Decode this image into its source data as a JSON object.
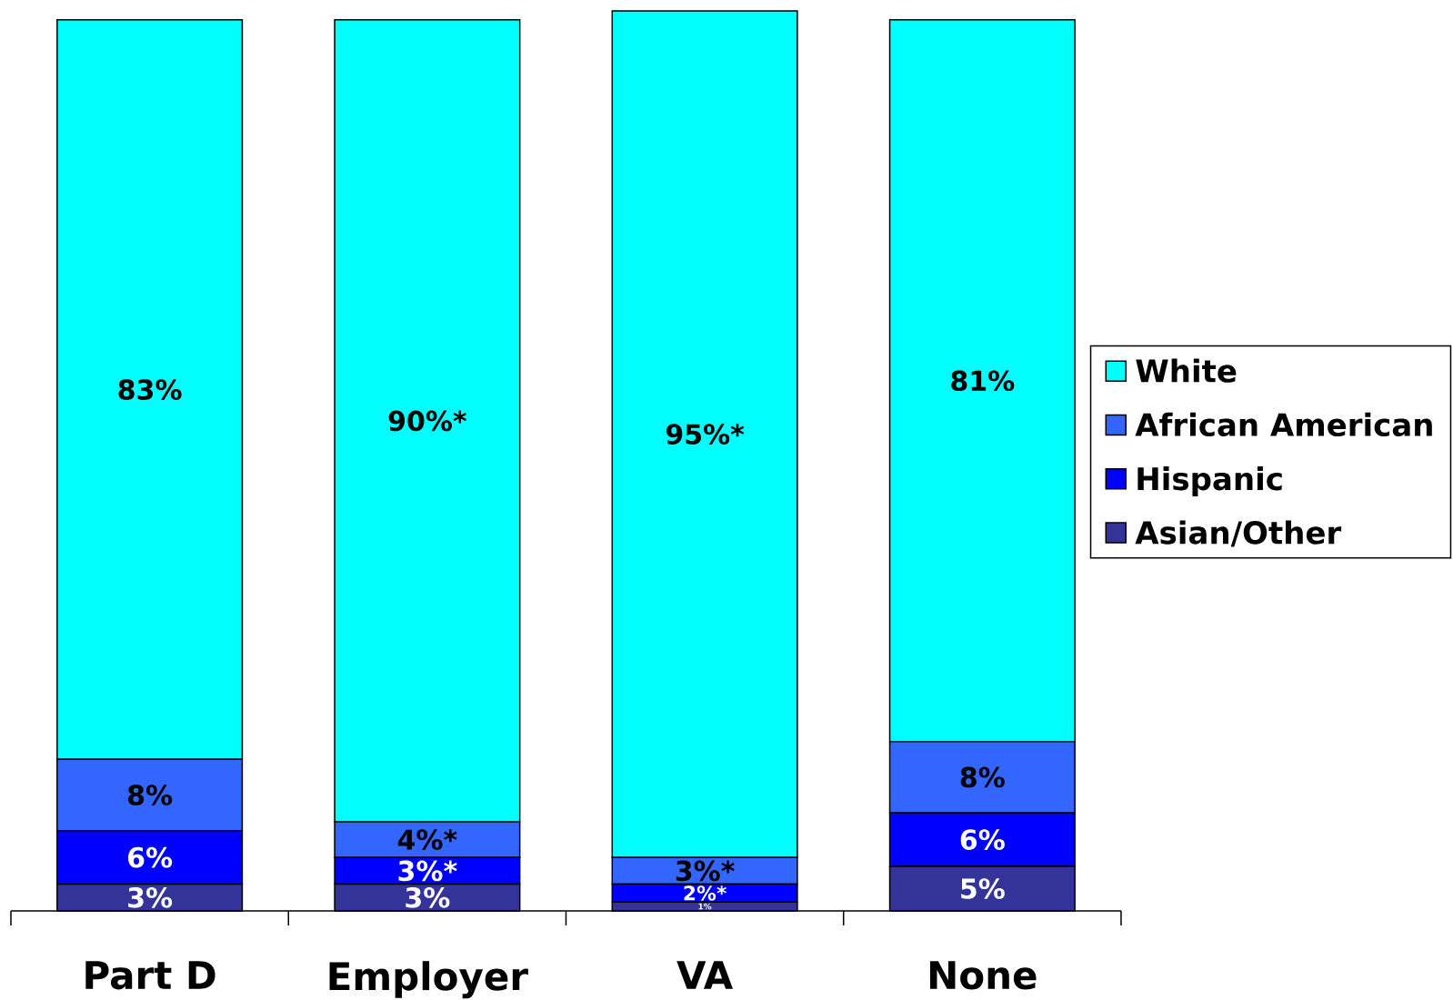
{
  "chart_data": {
    "type": "bar",
    "stacked": true,
    "categories": [
      "Part D",
      "Employer",
      "VA",
      "None"
    ],
    "series": [
      {
        "name": "Asian/Other",
        "color": "#333399",
        "values": [
          3,
          3,
          1,
          5
        ],
        "value_labels": [
          "3%",
          "3%",
          "1%",
          "5%"
        ]
      },
      {
        "name": "Hispanic",
        "color": "#0000ff",
        "values": [
          6,
          3,
          2,
          6
        ],
        "value_labels": [
          "6%",
          "3%*",
          "2%*",
          "6%"
        ]
      },
      {
        "name": "African American",
        "color": "#3366ff",
        "values": [
          8,
          4,
          3,
          8
        ],
        "value_labels": [
          "8%",
          "4%*",
          "3%*",
          "8%"
        ]
      },
      {
        "name": "White",
        "color": "#00ffff",
        "values": [
          83,
          90,
          95,
          81
        ],
        "value_labels": [
          "83%",
          "90%*",
          "95%*",
          "81%"
        ]
      }
    ],
    "legend": "right",
    "tick_labels": "x"
  }
}
